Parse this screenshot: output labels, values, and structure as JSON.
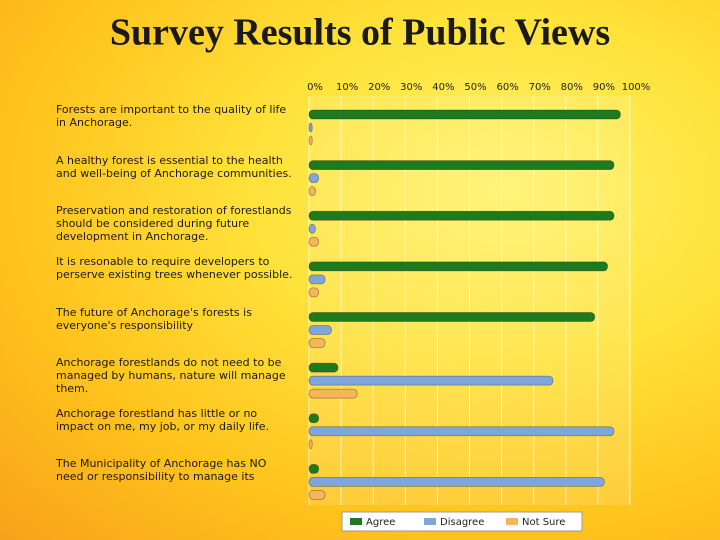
{
  "chart_data": {
    "type": "hbar",
    "title": "Survey Results of Public Views",
    "categories": [
      "Forests are important to the quality of life in Anchorage.",
      "A healthy forest is essential to the health and well-being of Anchorage communities.",
      "Preservation and restoration of forestlands should be considered during future development in Anchorage.",
      "It is resonable to require developers to perserve existing trees whenever possible.",
      "The future of Anchorage's forests is everyone's responsibility",
      "Anchorage forestlands do not need to be managed by humans, nature will manage them.",
      "Anchorage forestland has little or no impact on me, my job, or my daily life.",
      "The Municipality of Anchorage has NO need or responsibility to manage its"
    ],
    "series": [
      {
        "name": "Agree",
        "color": "#1f7a1f",
        "values": [
          97,
          95,
          95,
          93,
          89,
          9,
          3,
          3
        ]
      },
      {
        "name": "Disagree",
        "color": "#7ea6dd",
        "values": [
          1,
          3,
          2,
          5,
          7,
          76,
          95,
          92
        ]
      },
      {
        "name": "Not Sure",
        "color": "#f5b55a",
        "values": [
          1,
          2,
          3,
          3,
          5,
          15,
          1,
          5
        ]
      }
    ],
    "xlim": [
      0,
      100
    ],
    "xticks": [
      {
        "value": 0,
        "label": "0%"
      },
      {
        "value": 10,
        "label": "10%"
      },
      {
        "value": 20,
        "label": "20%"
      },
      {
        "value": 30,
        "label": "30%"
      },
      {
        "value": 40,
        "label": "40%"
      },
      {
        "value": 50,
        "label": "50%"
      },
      {
        "value": 60,
        "label": "60%"
      },
      {
        "value": 70,
        "label": "70%"
      },
      {
        "value": 80,
        "label": "80%"
      },
      {
        "value": 90,
        "label": "90%"
      },
      {
        "value": 100,
        "label": "100%"
      }
    ],
    "grid": true,
    "legend": "bottom"
  }
}
